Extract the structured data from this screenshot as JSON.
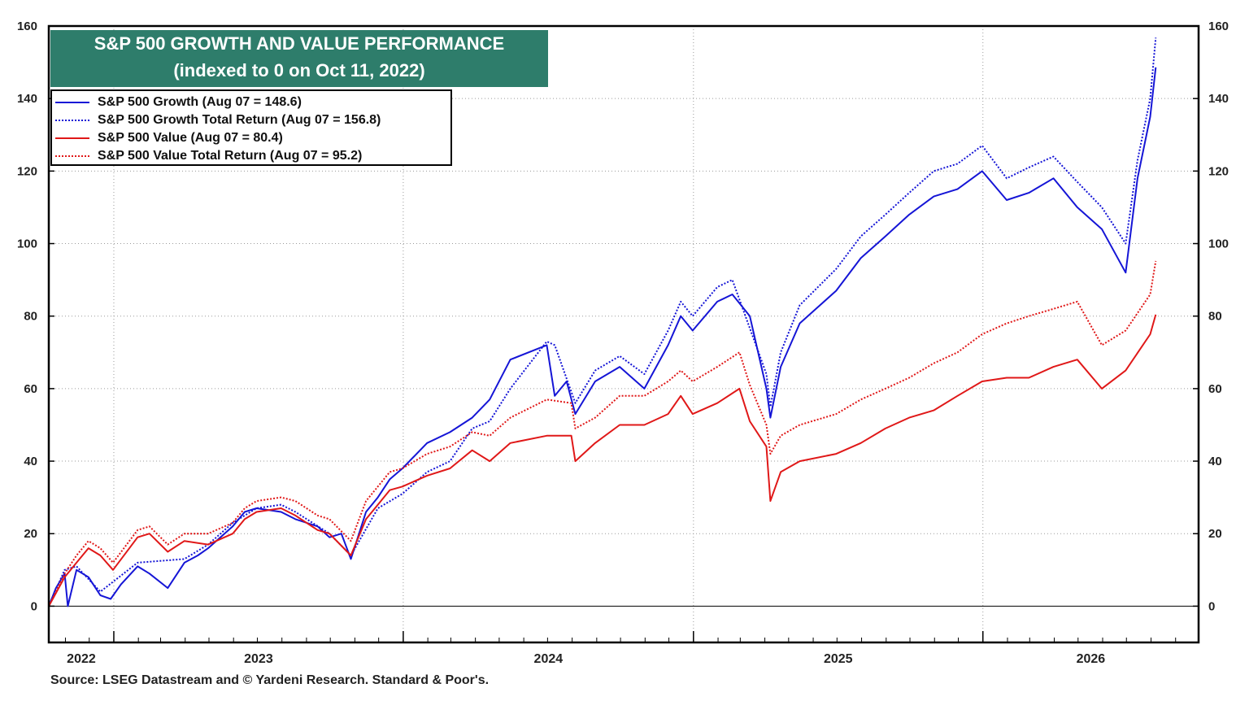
{
  "chart_data": {
    "type": "line",
    "title": "S&P 500 GROWTH AND VALUE PERFORMANCE",
    "subtitle": "(indexed to 0 on Oct 11, 2022)",
    "xlabel": "",
    "ylabel": "",
    "ylim": [
      -10,
      160
    ],
    "xlim": [
      "2022-10-11",
      "2026-09-30"
    ],
    "y_ticks": [
      "160",
      "140",
      "120",
      "100",
      "80",
      "60",
      "40",
      "20",
      "0"
    ],
    "y_ticks_right": [
      "160",
      "140",
      "120",
      "100",
      "80",
      "60",
      "40",
      "20",
      "0"
    ],
    "x_tick_labels": [
      "2022",
      "2023",
      "2024",
      "2025",
      "2026"
    ],
    "grid": true,
    "legend_position": "top-left",
    "series": [
      {
        "name": "S&P 500 Growth (Aug 07 = 148.6)",
        "color": "#1515d6",
        "style": "solid",
        "x": [
          "2022-10-11",
          "2022-10-20",
          "2022-10-31",
          "2022-11-04",
          "2022-11-15",
          "2022-11-30",
          "2022-12-15",
          "2022-12-28",
          "2023-01-10",
          "2023-01-31",
          "2023-02-15",
          "2023-03-10",
          "2023-03-31",
          "2023-04-17",
          "2023-04-30",
          "2023-05-31",
          "2023-06-15",
          "2023-06-30",
          "2023-07-31",
          "2023-08-18",
          "2023-09-15",
          "2023-09-30",
          "2023-10-15",
          "2023-10-27",
          "2023-11-15",
          "2023-11-30",
          "2023-12-15",
          "2023-12-31",
          "2024-01-31",
          "2024-02-29",
          "2024-03-28",
          "2024-04-19",
          "2024-05-15",
          "2024-06-30",
          "2024-07-10",
          "2024-07-25",
          "2024-08-05",
          "2024-08-30",
          "2024-09-30",
          "2024-10-31",
          "2024-11-30",
          "2024-12-16",
          "2024-12-31",
          "2025-01-31",
          "2025-02-19",
          "2025-03-13",
          "2025-04-03",
          "2025-04-08",
          "2025-04-21",
          "2025-05-15",
          "2025-06-30",
          "2025-07-31",
          "2025-08-31",
          "2025-09-30",
          "2025-10-31",
          "2025-11-30",
          "2025-12-31",
          "2026-01-31",
          "2026-02-28",
          "2026-03-31",
          "2026-04-30",
          "2026-05-31",
          "2026-06-30",
          "2026-07-15",
          "2026-07-31",
          "2026-08-07"
        ],
        "values": [
          0,
          5,
          9,
          0,
          10,
          8,
          3,
          2,
          6,
          11,
          9,
          5,
          12,
          14,
          16,
          22,
          26,
          27,
          26,
          24,
          22,
          19,
          20,
          13,
          26,
          30,
          35,
          38,
          45,
          48,
          52,
          57,
          68,
          72,
          58,
          62,
          53,
          62,
          66,
          60,
          72,
          80,
          76,
          84,
          86,
          80,
          60,
          52,
          66,
          78,
          87,
          96,
          102,
          108,
          113,
          115,
          120,
          112,
          114,
          118,
          110,
          104,
          92,
          118,
          135,
          148.6
        ]
      },
      {
        "name": "S&P 500 Growth Total Return (Aug 07 = 156.8)",
        "color": "#1515d6",
        "style": "dotted",
        "x": [
          "2022-10-11",
          "2022-10-31",
          "2022-11-15",
          "2022-12-15",
          "2023-01-31",
          "2023-03-31",
          "2023-04-30",
          "2023-05-31",
          "2023-06-30",
          "2023-07-31",
          "2023-08-18",
          "2023-09-30",
          "2023-10-27",
          "2023-11-30",
          "2023-12-31",
          "2024-01-31",
          "2024-02-29",
          "2024-03-28",
          "2024-04-19",
          "2024-05-15",
          "2024-06-30",
          "2024-07-10",
          "2024-08-05",
          "2024-08-30",
          "2024-09-30",
          "2024-10-31",
          "2024-11-30",
          "2024-12-16",
          "2024-12-31",
          "2025-01-31",
          "2025-02-19",
          "2025-04-03",
          "2025-04-08",
          "2025-04-21",
          "2025-05-15",
          "2025-06-30",
          "2025-07-31",
          "2025-08-31",
          "2025-09-30",
          "2025-10-31",
          "2025-11-30",
          "2025-12-31",
          "2026-01-31",
          "2026-02-28",
          "2026-03-31",
          "2026-04-30",
          "2026-05-31",
          "2026-06-30",
          "2026-07-15",
          "2026-07-31",
          "2026-08-07"
        ],
        "values": [
          0,
          10,
          11,
          4,
          12,
          13,
          17,
          23,
          27,
          28,
          26,
          20,
          14,
          27,
          31,
          37,
          40,
          49,
          51,
          60,
          73,
          72,
          56,
          65,
          69,
          64,
          76,
          84,
          80,
          88,
          90,
          64,
          55,
          70,
          83,
          93,
          102,
          108,
          114,
          120,
          122,
          127,
          118,
          121,
          124,
          117,
          110,
          100,
          123,
          140,
          156.8
        ]
      },
      {
        "name": "S&P 500 Value (Aug 07 = 80.4)",
        "color": "#e01818",
        "style": "solid",
        "x": [
          "2022-10-11",
          "2022-10-31",
          "2022-11-15",
          "2022-11-30",
          "2022-12-15",
          "2022-12-31",
          "2023-01-31",
          "2023-02-15",
          "2023-03-10",
          "2023-03-31",
          "2023-04-30",
          "2023-05-31",
          "2023-06-15",
          "2023-06-30",
          "2023-07-31",
          "2023-08-18",
          "2023-09-15",
          "2023-09-30",
          "2023-10-27",
          "2023-11-15",
          "2023-11-30",
          "2023-12-15",
          "2023-12-31",
          "2024-01-31",
          "2024-02-29",
          "2024-03-28",
          "2024-04-19",
          "2024-05-15",
          "2024-06-30",
          "2024-07-31",
          "2024-08-05",
          "2024-08-30",
          "2024-09-30",
          "2024-10-31",
          "2024-11-30",
          "2024-12-16",
          "2024-12-31",
          "2025-01-31",
          "2025-02-28",
          "2025-03-13",
          "2025-04-03",
          "2025-04-08",
          "2025-04-21",
          "2025-05-15",
          "2025-06-30",
          "2025-07-31",
          "2025-08-31",
          "2025-09-30",
          "2025-10-31",
          "2025-11-30",
          "2025-12-31",
          "2026-01-31",
          "2026-02-28",
          "2026-03-31",
          "2026-04-30",
          "2026-05-31",
          "2026-06-30",
          "2026-07-31",
          "2026-08-07"
        ],
        "values": [
          0,
          8,
          12,
          16,
          14,
          10,
          19,
          20,
          15,
          18,
          17,
          20,
          24,
          26,
          27,
          25,
          21,
          20,
          14,
          24,
          28,
          32,
          33,
          36,
          38,
          43,
          40,
          45,
          47,
          47,
          40,
          45,
          50,
          50,
          53,
          58,
          53,
          56,
          60,
          51,
          44,
          29,
          37,
          40,
          42,
          45,
          49,
          52,
          54,
          58,
          62,
          63,
          63,
          66,
          68,
          60,
          65,
          75,
          80.4
        ]
      },
      {
        "name": "S&P 500 Value Total Return (Aug 07 = 95.2)",
        "color": "#e01818",
        "style": "dotted",
        "x": [
          "2022-10-11",
          "2022-10-31",
          "2022-11-15",
          "2022-11-30",
          "2022-12-15",
          "2022-12-31",
          "2023-01-31",
          "2023-02-15",
          "2023-03-10",
          "2023-03-31",
          "2023-04-30",
          "2023-05-31",
          "2023-06-15",
          "2023-06-30",
          "2023-07-31",
          "2023-08-18",
          "2023-09-15",
          "2023-09-30",
          "2023-10-27",
          "2023-11-15",
          "2023-11-30",
          "2023-12-15",
          "2023-12-31",
          "2024-01-31",
          "2024-02-29",
          "2024-03-28",
          "2024-04-19",
          "2024-05-15",
          "2024-06-30",
          "2024-07-31",
          "2024-08-05",
          "2024-08-30",
          "2024-09-30",
          "2024-10-31",
          "2024-11-30",
          "2024-12-16",
          "2024-12-31",
          "2025-01-31",
          "2025-02-28",
          "2025-03-13",
          "2025-04-03",
          "2025-04-08",
          "2025-04-21",
          "2025-05-15",
          "2025-06-30",
          "2025-07-31",
          "2025-08-31",
          "2025-09-30",
          "2025-10-31",
          "2025-11-30",
          "2025-12-31",
          "2026-01-31",
          "2026-02-28",
          "2026-03-31",
          "2026-04-30",
          "2026-05-31",
          "2026-06-30",
          "2026-07-31",
          "2026-08-07"
        ],
        "values": [
          0,
          9,
          14,
          18,
          16,
          12,
          21,
          22,
          17,
          20,
          20,
          23,
          27,
          29,
          30,
          29,
          25,
          24,
          18,
          29,
          33,
          37,
          38,
          42,
          44,
          48,
          47,
          52,
          57,
          56,
          49,
          52,
          58,
          58,
          62,
          65,
          62,
          66,
          70,
          61,
          50,
          42,
          47,
          50,
          53,
          57,
          60,
          63,
          67,
          70,
          75,
          78,
          80,
          82,
          84,
          72,
          76,
          86,
          95.2
        ]
      }
    ]
  },
  "source": "Source: LSEG Datastream and © Yardeni Research. Standard & Poor's."
}
